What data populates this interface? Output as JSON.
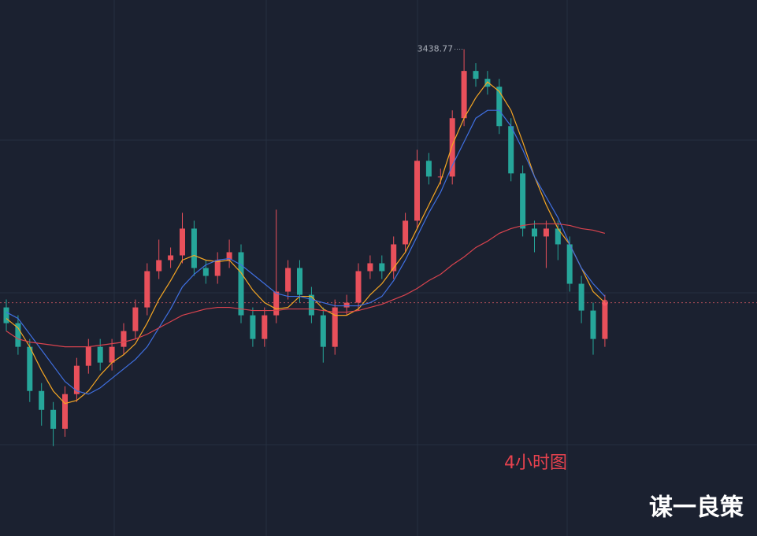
{
  "chart_data": {
    "type": "candlestick",
    "categories": [
      null,
      null,
      null,
      null,
      null,
      null,
      null,
      null,
      null,
      null,
      null,
      null,
      null,
      null,
      null,
      null,
      null,
      null,
      null,
      null,
      null,
      null,
      null,
      null,
      null,
      null,
      null,
      null,
      null,
      null,
      null,
      null,
      null,
      null,
      null,
      null,
      null,
      null,
      null,
      null,
      null,
      null,
      null,
      null,
      null,
      null,
      null,
      null,
      null,
      null,
      null,
      null
    ],
    "open": [
      3275,
      3265,
      3250,
      3222,
      3210,
      3198,
      3220,
      3238,
      3250,
      3240,
      3250,
      3260,
      3275,
      3298,
      3305,
      3308,
      3325,
      3300,
      3295,
      3305,
      3310,
      3270,
      3255,
      3270,
      3285,
      3300,
      3283,
      3270,
      3250,
      3275,
      3278,
      3298,
      3303,
      3298,
      3315,
      3330,
      3368,
      3358,
      3358,
      3395,
      3425,
      3420,
      3415,
      3390,
      3360,
      3325,
      3320,
      3325,
      3315,
      3290,
      3273,
      3255
    ],
    "high": [
      3280,
      3270,
      3255,
      3227,
      3215,
      3225,
      3243,
      3255,
      3255,
      3255,
      3265,
      3280,
      3303,
      3318,
      3313,
      3335,
      3330,
      3305,
      3310,
      3318,
      3315,
      3275,
      3275,
      3337,
      3305,
      3305,
      3288,
      3275,
      3280,
      3283,
      3303,
      3308,
      3308,
      3320,
      3335,
      3375,
      3373,
      3363,
      3400,
      3438.77,
      3430,
      3425,
      3420,
      3395,
      3365,
      3330,
      3330,
      3330,
      3320,
      3295,
      3278,
      3283
    ],
    "low": [
      3260,
      3245,
      3215,
      3200,
      3187,
      3193,
      3215,
      3233,
      3235,
      3235,
      3245,
      3255,
      3270,
      3293,
      3300,
      3303,
      3295,
      3290,
      3290,
      3300,
      3265,
      3250,
      3250,
      3265,
      3280,
      3278,
      3265,
      3240,
      3245,
      3270,
      3273,
      3293,
      3293,
      3293,
      3310,
      3325,
      3353,
      3353,
      3353,
      3390,
      3415,
      3410,
      3385,
      3355,
      3320,
      3310,
      3300,
      3305,
      3285,
      3265,
      3245,
      3250
    ],
    "close": [
      3265,
      3250,
      3222,
      3210,
      3198,
      3220,
      3238,
      3250,
      3240,
      3250,
      3260,
      3275,
      3298,
      3305,
      3308,
      3325,
      3300,
      3295,
      3305,
      3310,
      3270,
      3255,
      3270,
      3285,
      3300,
      3283,
      3270,
      3250,
      3275,
      3278,
      3298,
      3303,
      3298,
      3315,
      3330,
      3368,
      3358,
      3358,
      3395,
      3425,
      3420,
      3415,
      3390,
      3360,
      3325,
      3320,
      3325,
      3315,
      3290,
      3273,
      3255,
      3278
    ],
    "up_color": "#e8505b",
    "down_color": "#26a69a",
    "series": [
      {
        "color": "#f5a623",
        "values": [
          3268,
          3262,
          3250,
          3235,
          3222,
          3214,
          3216,
          3222,
          3232,
          3240,
          3245,
          3252,
          3265,
          3280,
          3292,
          3305,
          3308,
          3305,
          3304,
          3305,
          3297,
          3286,
          3278,
          3274,
          3275,
          3282,
          3282,
          3274,
          3270,
          3270,
          3274,
          3283,
          3290,
          3300,
          3310,
          3325,
          3340,
          3355,
          3378,
          3395,
          3408,
          3418,
          3412,
          3400,
          3380,
          3358,
          3340,
          3325,
          3315,
          3300,
          3285,
          3278
        ]
      },
      {
        "color": "#3f6fe0",
        "values": [
          3272,
          3268,
          3258,
          3248,
          3238,
          3228,
          3222,
          3220,
          3224,
          3230,
          3236,
          3242,
          3250,
          3262,
          3274,
          3288,
          3296,
          3302,
          3305,
          3306,
          3302,
          3296,
          3290,
          3284,
          3282,
          3282,
          3280,
          3278,
          3276,
          3276,
          3276,
          3278,
          3282,
          3292,
          3305,
          3320,
          3335,
          3348,
          3365,
          3380,
          3395,
          3400,
          3400,
          3390,
          3375,
          3358,
          3345,
          3332,
          3315,
          3300,
          3290,
          3282
        ]
      },
      {
        "color": "#d9434e",
        "values": [
          3260,
          3255,
          3253,
          3252,
          3251,
          3250,
          3250,
          3250,
          3251,
          3252,
          3253,
          3255,
          3258,
          3262,
          3266,
          3270,
          3272,
          3274,
          3275,
          3275,
          3274,
          3273,
          3273,
          3273,
          3274,
          3274,
          3274,
          3273,
          3272,
          3272,
          3273,
          3275,
          3277,
          3280,
          3283,
          3287,
          3292,
          3296,
          3302,
          3307,
          3313,
          3317,
          3322,
          3325,
          3327,
          3328,
          3328,
          3328,
          3327,
          3325,
          3324,
          3322
        ]
      }
    ],
    "ylim": [
      3130,
      3470
    ],
    "annotation": "4小时图",
    "watermark": "谋一良策"
  }
}
